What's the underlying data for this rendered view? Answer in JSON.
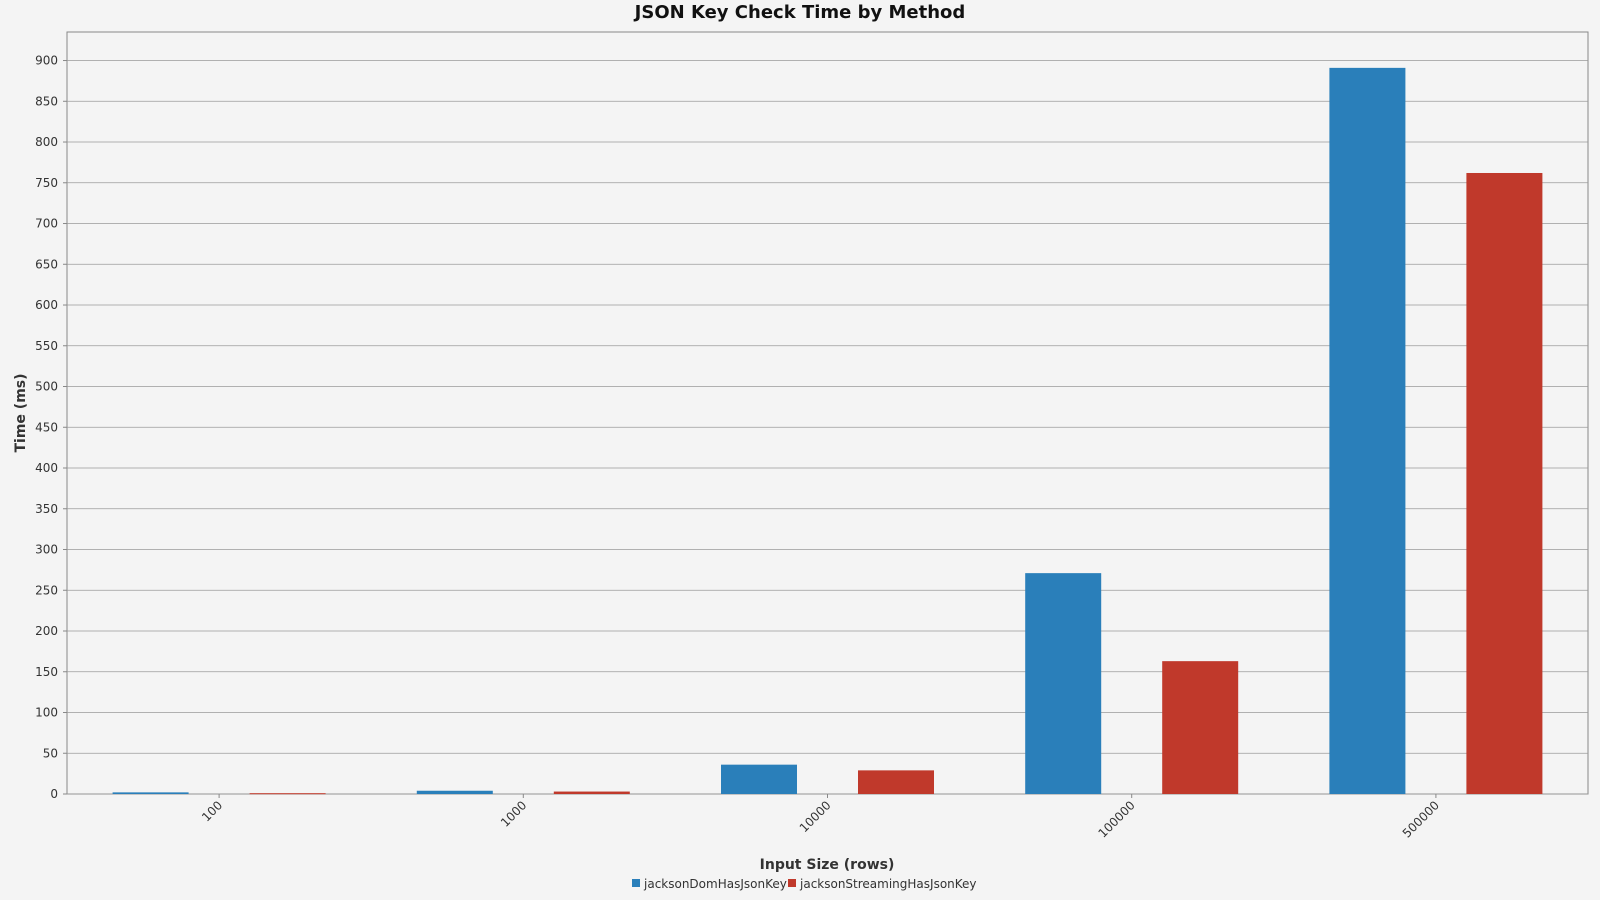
{
  "chart_data": {
    "type": "bar",
    "title": "JSON Key Check Time by Method",
    "xlabel": "Input Size (rows)",
    "ylabel": "Time (ms)",
    "categories": [
      "100",
      "1000",
      "10000",
      "100000",
      "500000"
    ],
    "series": [
      {
        "name": "jacksonDomHasJsonKey",
        "color": "#2a7fba",
        "values": [
          2,
          4,
          36,
          271,
          891
        ]
      },
      {
        "name": "jacksonStreamingHasJsonKey",
        "color": "#c0392b",
        "values": [
          1,
          3,
          29,
          163,
          762
        ]
      }
    ],
    "ylim": [
      0,
      935
    ],
    "yticks": [
      0,
      50,
      100,
      150,
      200,
      250,
      300,
      350,
      400,
      450,
      500,
      550,
      600,
      650,
      700,
      750,
      800,
      850,
      900
    ],
    "grid": true,
    "legend_position": "bottom-center"
  }
}
